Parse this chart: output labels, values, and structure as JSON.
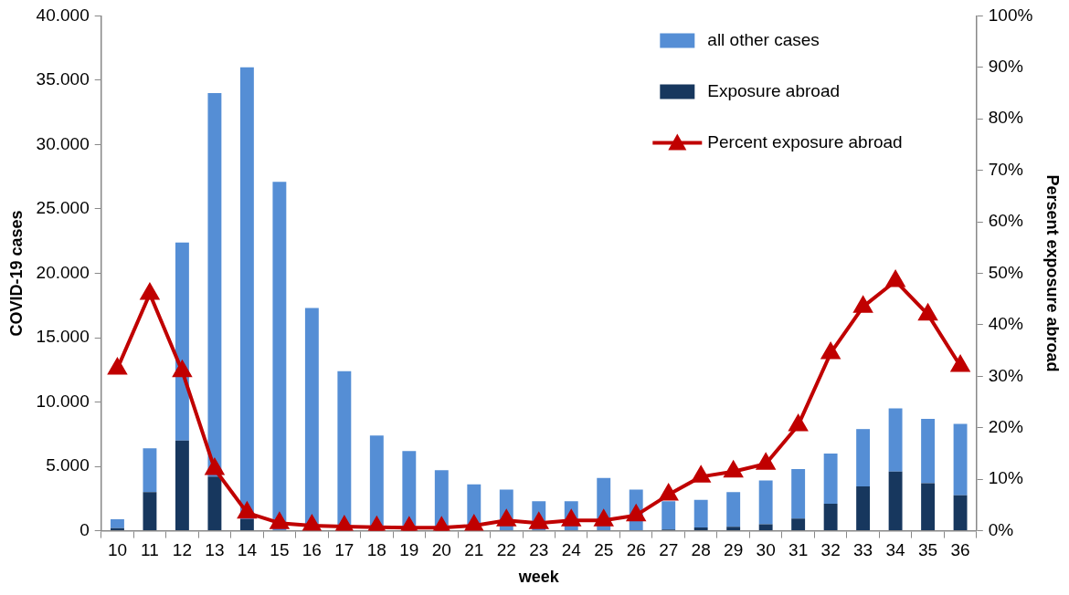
{
  "chart_data": {
    "type": "bar",
    "xlabel": "week",
    "ylabel": "COVID-19 cases",
    "y2label": "Persent exposure abroad",
    "categories": [
      "10",
      "11",
      "12",
      "13",
      "14",
      "15",
      "16",
      "17",
      "18",
      "19",
      "20",
      "21",
      "22",
      "23",
      "24",
      "25",
      "26",
      "27",
      "28",
      "29",
      "30",
      "31",
      "32",
      "33",
      "34",
      "35",
      "36"
    ],
    "stacked": true,
    "series": [
      {
        "name": "Exposure abroad",
        "color": "#17375e",
        "values": [
          200,
          3000,
          7000,
          4200,
          900,
          null,
          null,
          null,
          null,
          null,
          null,
          null,
          null,
          null,
          null,
          null,
          null,
          100,
          250,
          300,
          500,
          950,
          2100,
          3450,
          4600,
          3700,
          2750
        ]
      },
      {
        "name": "all other cases",
        "color": "#558ed5",
        "values": [
          700,
          3400,
          15400,
          29800,
          35100,
          27100,
          17300,
          12400,
          7400,
          6200,
          4700,
          3600,
          3200,
          2300,
          2300,
          4100,
          3200,
          2200,
          2150,
          2700,
          3400,
          3850,
          3900,
          4450,
          4900,
          5000,
          5550
        ]
      },
      {
        "name": "Percent exposure abroad",
        "type": "line",
        "axis": "y2",
        "color": "#c00000",
        "marker": "triangle",
        "values": [
          31.5,
          46,
          31,
          12,
          3.5,
          1.5,
          1,
          0.8,
          0.7,
          0.6,
          0.6,
          1,
          2,
          1.5,
          2,
          2,
          3,
          7,
          10.5,
          11.5,
          13,
          20.5,
          34.5,
          43.5,
          48.5,
          42,
          32
        ]
      }
    ],
    "ylim": [
      0,
      40000
    ],
    "yticks": [
      {
        "value": 0,
        "label": "0"
      },
      {
        "value": 5000,
        "label": "5.000"
      },
      {
        "value": 10000,
        "label": "10.000"
      },
      {
        "value": 15000,
        "label": "15.000"
      },
      {
        "value": 20000,
        "label": "20.000"
      },
      {
        "value": 25000,
        "label": "25.000"
      },
      {
        "value": 30000,
        "label": "30.000"
      },
      {
        "value": 35000,
        "label": "35.000"
      },
      {
        "value": 40000,
        "label": "40.000"
      }
    ],
    "y2lim": [
      0,
      100
    ],
    "y2ticks": [
      {
        "value": 0,
        "label": "0%"
      },
      {
        "value": 10,
        "label": "10%"
      },
      {
        "value": 20,
        "label": "20%"
      },
      {
        "value": 30,
        "label": "30%"
      },
      {
        "value": 40,
        "label": "40%"
      },
      {
        "value": 50,
        "label": "50%"
      },
      {
        "value": 60,
        "label": "60%"
      },
      {
        "value": 70,
        "label": "70%"
      },
      {
        "value": 80,
        "label": "80%"
      },
      {
        "value": 90,
        "label": "90%"
      },
      {
        "value": 100,
        "label": "100%"
      }
    ],
    "grid": false,
    "legend": "top right"
  }
}
